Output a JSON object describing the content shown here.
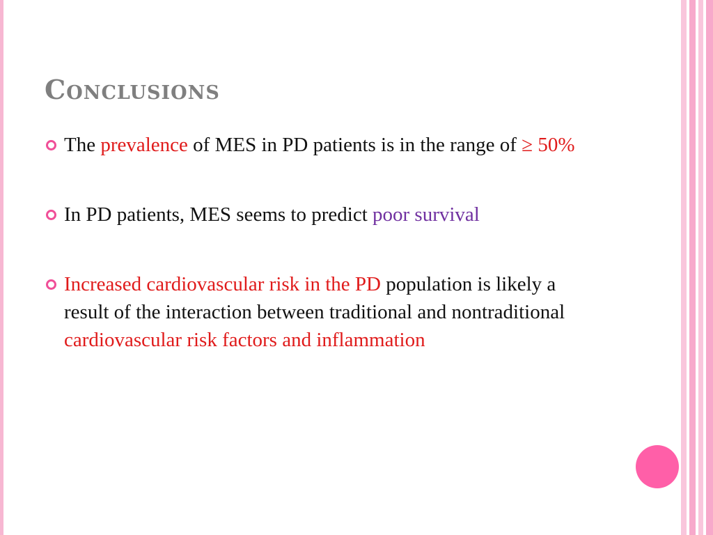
{
  "slide": {
    "title": "Conclusions",
    "bullets": [
      {
        "parts": [
          {
            "text": "The "
          },
          {
            "text": "prevalence",
            "color": "red"
          },
          {
            "text": " of MES in PD patients is in the range of "
          },
          {
            "text": "≥ 50%",
            "color": "red"
          }
        ]
      },
      {
        "parts": [
          {
            "text": "In PD patients, MES seems to predict "
          },
          {
            "text": "poor survival",
            "color": "purple"
          }
        ]
      },
      {
        "parts": [
          {
            "text": "Increased cardiovascular risk in the PD",
            "color": "red"
          },
          {
            "text": " population is likely a result of the interaction between traditional and nontraditional "
          },
          {
            "text": "cardiovascular risk factors and inflammation",
            "color": "red"
          }
        ]
      }
    ]
  },
  "colors": {
    "title": "#7f7f7f",
    "bullet_marker": "#f04f98",
    "emphasis_red": "#e01b1b",
    "emphasis_purple": "#7030a0",
    "decor_circle": "#ff5fa8",
    "decor_stripes": "#f7a9cb"
  }
}
